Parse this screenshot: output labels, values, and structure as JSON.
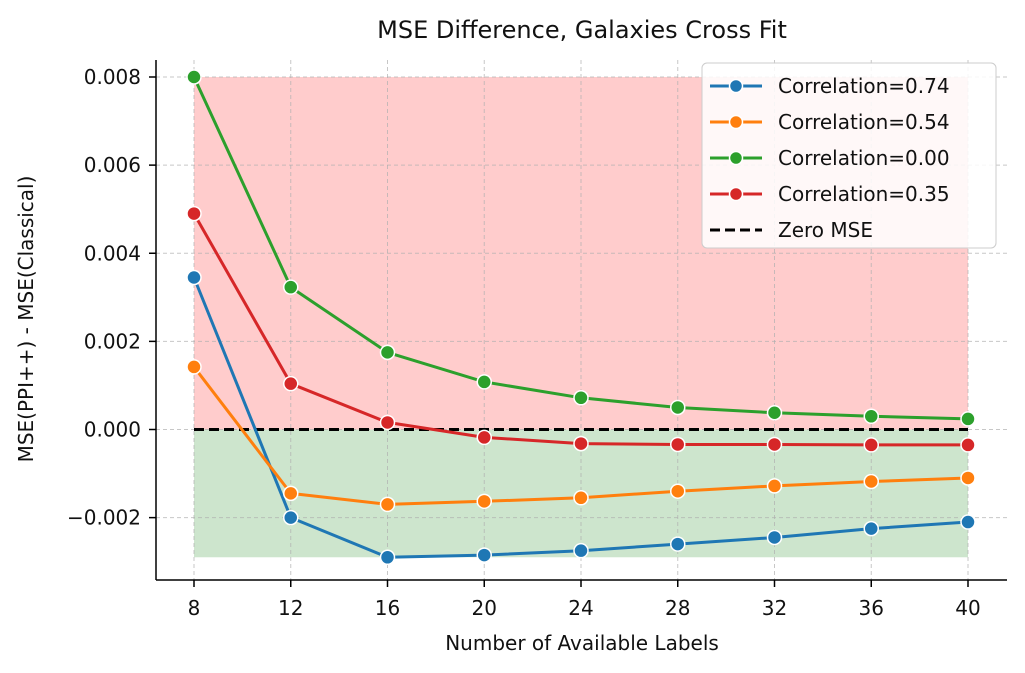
{
  "chart_data": {
    "type": "line",
    "title": "MSE Difference, Galaxies Cross Fit",
    "xlabel": "Number of Available Labels",
    "ylabel": "MSE(PPI++) - MSE(Classical)",
    "x": [
      8,
      12,
      16,
      20,
      24,
      28,
      32,
      36,
      40
    ],
    "xticks": [
      "8",
      "12",
      "16",
      "20",
      "24",
      "28",
      "32",
      "36",
      "40"
    ],
    "yticks": [
      {
        "value": 0.008,
        "label": "0.008"
      },
      {
        "value": 0.006,
        "label": "0.006"
      },
      {
        "value": 0.004,
        "label": "0.004"
      },
      {
        "value": 0.002,
        "label": "0.002"
      },
      {
        "value": 0.0,
        "label": "0.000"
      },
      {
        "value": -0.002,
        "label": "−0.002"
      }
    ],
    "xlim": [
      7.9,
      40.1
    ],
    "ylim": [
      -0.00345,
      0.0085
    ],
    "grid": true,
    "legend_position": "top-right",
    "shaded_regions": [
      {
        "name": "positive-region",
        "y_from": 0.0,
        "y_to": 0.008,
        "color": "#ffcccc"
      },
      {
        "name": "negative-region",
        "y_from": -0.0029,
        "y_to": 0.0,
        "color": "#cde5cd"
      }
    ],
    "series": [
      {
        "name": "Correlation=0.74",
        "color": "#1f77b4",
        "values": [
          0.00345,
          -0.002,
          -0.0029,
          -0.00285,
          -0.00275,
          -0.0026,
          -0.00245,
          -0.00225,
          -0.0021
        ]
      },
      {
        "name": "Correlation=0.54",
        "color": "#ff7f0e",
        "values": [
          0.00142,
          -0.00145,
          -0.0017,
          -0.00163,
          -0.00155,
          -0.0014,
          -0.00128,
          -0.00118,
          -0.0011
        ]
      },
      {
        "name": "Correlation=0.00",
        "color": "#2ca02c",
        "values": [
          0.008,
          0.00323,
          0.00175,
          0.00108,
          0.00072,
          0.0005,
          0.00038,
          0.0003,
          0.00024
        ]
      },
      {
        "name": "Correlation=0.35",
        "color": "#d62728",
        "values": [
          0.0049,
          0.00104,
          0.00016,
          -0.00018,
          -0.00032,
          -0.00034,
          -0.00034,
          -0.00035,
          -0.00035
        ]
      }
    ],
    "reference_line": {
      "name": "Zero MSE",
      "value": 0.0,
      "color": "#000000",
      "style": "dashed"
    }
  }
}
